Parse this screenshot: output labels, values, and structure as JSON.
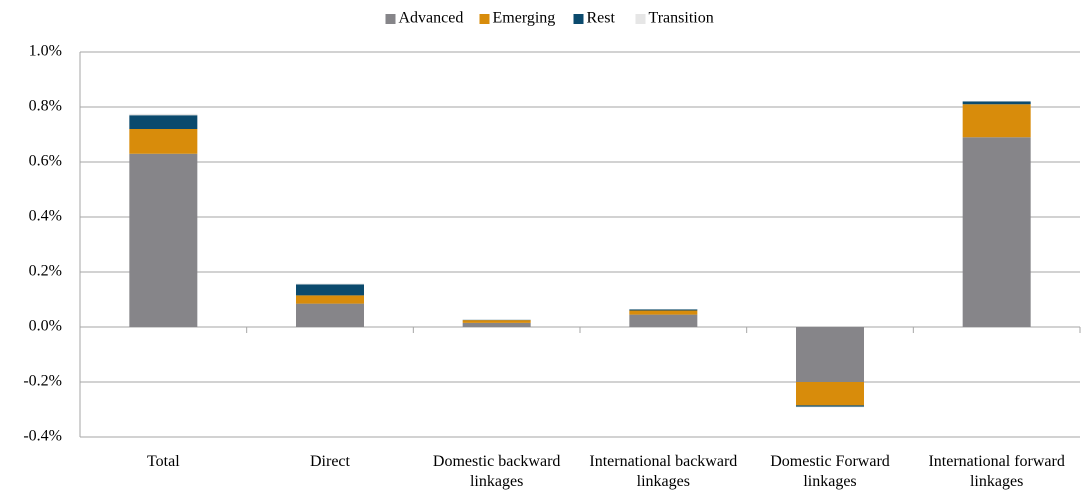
{
  "chart_data": {
    "type": "bar",
    "stacked": true,
    "categories": [
      "Total",
      "Direct",
      "Domestic backward linkages",
      "International backward linkages",
      "Domestic Forward linkages",
      "International forward linkages"
    ],
    "series": [
      {
        "name": "Advanced",
        "color": "#868589",
        "values": [
          0.63,
          0.085,
          0.015,
          0.045,
          -0.2,
          0.69
        ]
      },
      {
        "name": "Emerging",
        "color": "#d88c0b",
        "values": [
          0.09,
          0.03,
          0.01,
          0.015,
          -0.085,
          0.12
        ]
      },
      {
        "name": "Rest",
        "color": "#0b4a6d",
        "values": [
          0.05,
          0.04,
          0.001,
          0.004,
          -0.005,
          0.01
        ]
      },
      {
        "name": "Transition",
        "color": "#e6e6e6",
        "values": [
          0.005,
          0.003,
          0,
          0.001,
          -0.002,
          0.002
        ]
      }
    ],
    "ylim": [
      -0.4,
      1.0
    ],
    "yticks": [
      {
        "value": -0.4,
        "label": "-0.4%"
      },
      {
        "value": -0.2,
        "label": "-0.2%"
      },
      {
        "value": 0.0,
        "label": "0.0%"
      },
      {
        "value": 0.2,
        "label": "0.2%"
      },
      {
        "value": 0.4,
        "label": "0.4%"
      },
      {
        "value": 0.6,
        "label": "0.6%"
      },
      {
        "value": 0.8,
        "label": "0.8%"
      },
      {
        "value": 1.0,
        "label": "1.0%"
      }
    ],
    "grid": true,
    "legend": "top"
  }
}
